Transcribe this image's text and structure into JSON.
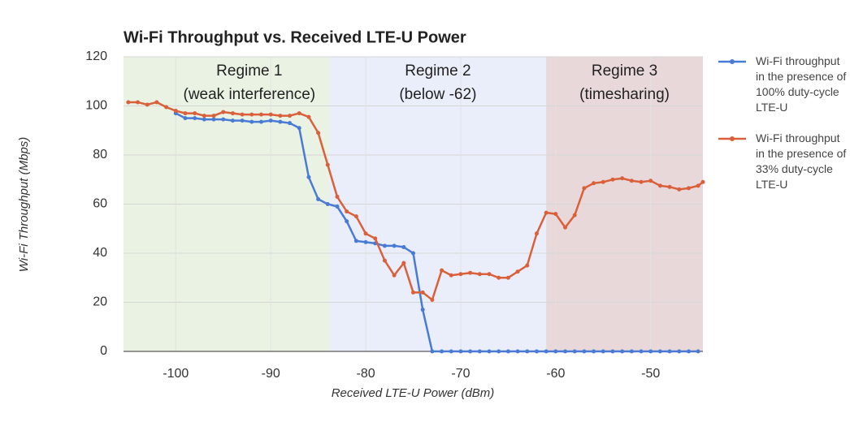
{
  "chart_data": {
    "type": "line",
    "title": "Wi-Fi Throughput vs. Received LTE-U Power",
    "x_label": "Received LTE-U Power (dBm)",
    "y_label": "Wi-Fi Throughput (Mbps)",
    "xlim": [
      -105.5,
      -44.5
    ],
    "ylim": [
      0,
      120
    ],
    "xticks": [
      -100,
      -90,
      -80,
      -70,
      -60,
      -50
    ],
    "yticks": [
      0,
      20,
      40,
      60,
      80,
      100,
      120
    ],
    "grid": true,
    "legend": "right",
    "regions": [
      {
        "start": -105.5,
        "end": -83.8,
        "color": "#e9f2e3",
        "label": [
          "Regime 1",
          "(weak interference)"
        ]
      },
      {
        "start": -83.8,
        "end": -61.0,
        "color": "#e9eefa",
        "label": [
          "Regime 2",
          "(below -62)"
        ]
      },
      {
        "start": -61.0,
        "end": -44.5,
        "color": "#e8d8da",
        "label": [
          "Regime 3",
          "(timesharing)"
        ]
      }
    ],
    "series": [
      {
        "name": "Wi-Fi throughput in the presence of 100% duty-cycle LTE-U",
        "color": "#4a7bd4",
        "x": [
          -100,
          -99,
          -98,
          -97,
          -96,
          -95,
          -94,
          -93,
          -92,
          -91,
          -90,
          -89,
          -88,
          -87,
          -86,
          -85,
          -84,
          -83,
          -82,
          -81,
          -80,
          -79,
          -78,
          -77,
          -76,
          -75,
          -74,
          -73,
          -72,
          -71,
          -70,
          -69,
          -68,
          -67,
          -66,
          -65,
          -64,
          -63,
          -62,
          -61,
          -60,
          -59,
          -58,
          -57,
          -56,
          -55,
          -54,
          -53,
          -52,
          -51,
          -50,
          -49,
          -48,
          -47,
          -46,
          -45
        ],
        "values": [
          97,
          95,
          95,
          94.5,
          94.5,
          94.5,
          94,
          94,
          93.5,
          93.5,
          94,
          93.5,
          93,
          91,
          71,
          62,
          60,
          59,
          53,
          45,
          44.5,
          44,
          43,
          43,
          42.5,
          40,
          17,
          0,
          0,
          0,
          0,
          0,
          0,
          0,
          0,
          0,
          0,
          0,
          0,
          0,
          0,
          0,
          0,
          0,
          0,
          0,
          0,
          0,
          0,
          0,
          0,
          0,
          0,
          0,
          0,
          0
        ]
      },
      {
        "name": "Wi-Fi throughput in the presence of 33% duty-cycle LTE-U",
        "color": "#d9603b",
        "x": [
          -105,
          -104,
          -103,
          -102,
          -101,
          -100,
          -99,
          -98,
          -97,
          -96,
          -95,
          -94,
          -93,
          -92,
          -91,
          -90,
          -89,
          -88,
          -87,
          -86,
          -85,
          -84,
          -83,
          -82,
          -81,
          -80,
          -79,
          -78,
          -77,
          -76,
          -75,
          -74,
          -73,
          -72,
          -71,
          -70,
          -69,
          -68,
          -67,
          -66,
          -65,
          -64,
          -63,
          -62,
          -61,
          -60,
          -59,
          -58,
          -57,
          -56,
          -55,
          -54,
          -53,
          -52,
          -51,
          -50,
          -49,
          -48,
          -47,
          -46,
          -45,
          -44.5
        ],
        "values": [
          101.5,
          101.5,
          100.5,
          101.5,
          99.5,
          98,
          97,
          97,
          96,
          96,
          97.5,
          97,
          96.5,
          96.5,
          96.5,
          96.5,
          96,
          96,
          97,
          95.5,
          89,
          76,
          63,
          57,
          55,
          48,
          46,
          37,
          31,
          36,
          24,
          24,
          21,
          33,
          31,
          31.5,
          32,
          31.5,
          31.5,
          30,
          30,
          32.5,
          35,
          48,
          56.5,
          56,
          50.5,
          55.5,
          66.5,
          68.5,
          69,
          70,
          70.5,
          69.5,
          69,
          69.5,
          67.5,
          67,
          66,
          66.5,
          67.5,
          69
        ]
      }
    ]
  }
}
